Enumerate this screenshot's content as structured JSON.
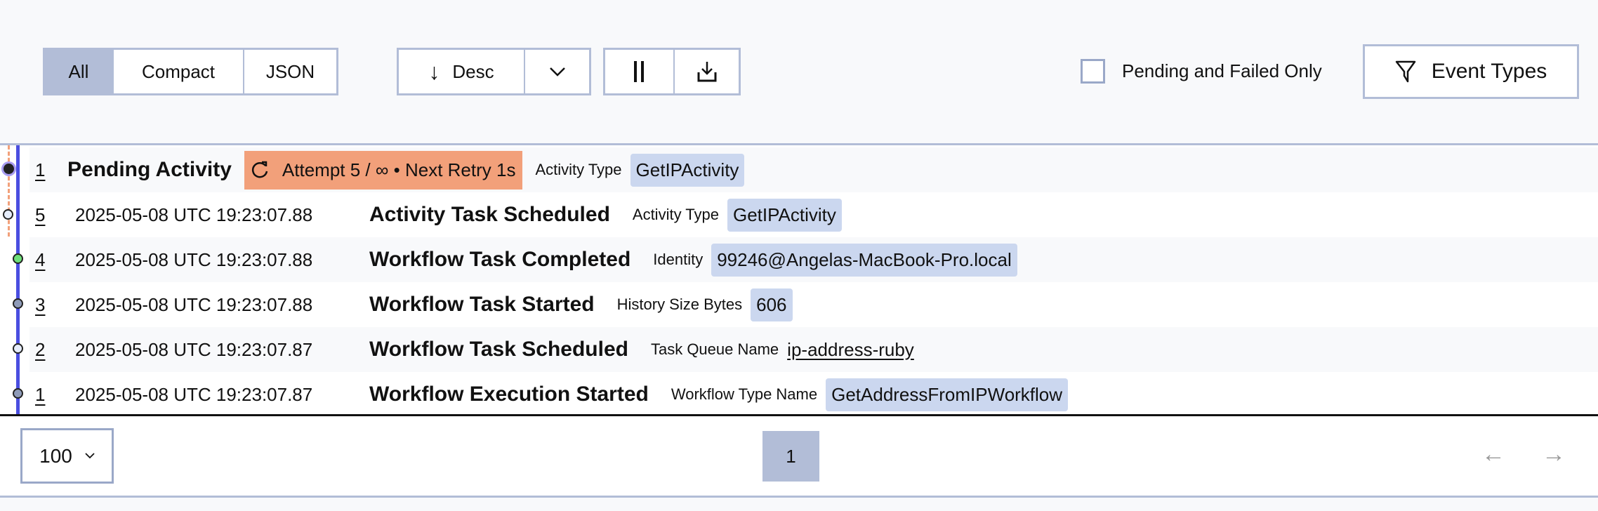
{
  "toolbar": {
    "view_modes": [
      "All",
      "Compact",
      "JSON"
    ],
    "selected_view": "All",
    "sort_label": "Desc",
    "pending_failed_label": "Pending and Failed Only",
    "pending_failed_checked": false,
    "event_types_label": "Event Types"
  },
  "pending": {
    "id": "1",
    "title": "Pending Activity",
    "retry": "Attempt 5 / ∞ • Next Retry 1s",
    "label": "Activity Type",
    "value": "GetIPActivity"
  },
  "events": [
    {
      "id": "5",
      "time": "2025-05-08 UTC 19:23:07.88",
      "name": "Activity Task Scheduled",
      "label": "Activity Type",
      "value": "GetIPActivity"
    },
    {
      "id": "4",
      "time": "2025-05-08 UTC 19:23:07.88",
      "name": "Workflow Task Completed",
      "label": "Identity",
      "value": "99246@Angelas-MacBook-Pro.local"
    },
    {
      "id": "3",
      "time": "2025-05-08 UTC 19:23:07.88",
      "name": "Workflow Task Started",
      "label": "History Size Bytes",
      "value": "606"
    },
    {
      "id": "2",
      "time": "2025-05-08 UTC 19:23:07.87",
      "name": "Workflow Task Scheduled",
      "label": "Task Queue Name",
      "value": "ip-address-ruby"
    },
    {
      "id": "1",
      "time": "2025-05-08 UTC 19:23:07.87",
      "name": "Workflow Execution Started",
      "label": "Workflow Type Name",
      "value": "GetAddressFromIPWorkflow"
    }
  ],
  "pagination": {
    "page_size": "100",
    "current_page": "1"
  },
  "colors": {
    "timeline": "#4a4ee0",
    "pending": "#f2a07a",
    "badge": "#cbd7ef",
    "selected": "#b2bdd7",
    "completed_dot": "#6ee07a"
  }
}
